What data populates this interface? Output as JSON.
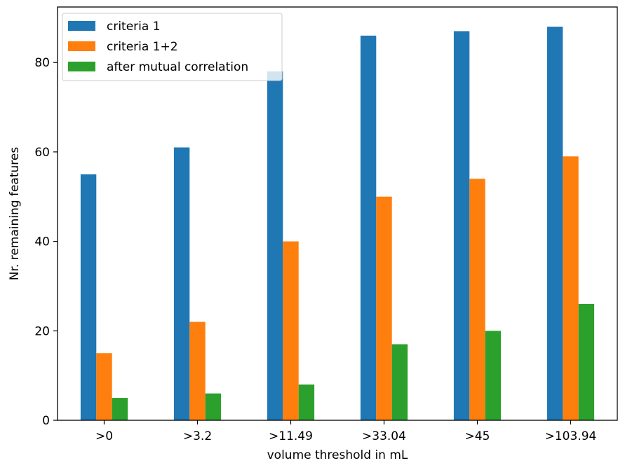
{
  "chart_data": {
    "type": "bar",
    "xlabel": "volume threshold in mL",
    "ylabel": "Nr. remaining features",
    "categories": [
      ">0",
      ">3.2",
      ">11.49",
      ">33.04",
      ">45",
      ">103.94"
    ],
    "series": [
      {
        "name": "criteria 1",
        "color": "#1f77b4",
        "values": [
          55,
          61,
          78,
          86,
          87,
          88
        ]
      },
      {
        "name": "criteria 1+2",
        "color": "#ff7f0e",
        "values": [
          15,
          22,
          40,
          50,
          54,
          59
        ]
      },
      {
        "name": "after mutual correlation",
        "color": "#2ca02c",
        "values": [
          5,
          6,
          8,
          17,
          20,
          26
        ]
      }
    ],
    "ylim": [
      0,
      92.4
    ],
    "yticks": [
      0,
      20,
      40,
      60,
      80
    ],
    "legend_position": "top-left",
    "grid": false
  }
}
